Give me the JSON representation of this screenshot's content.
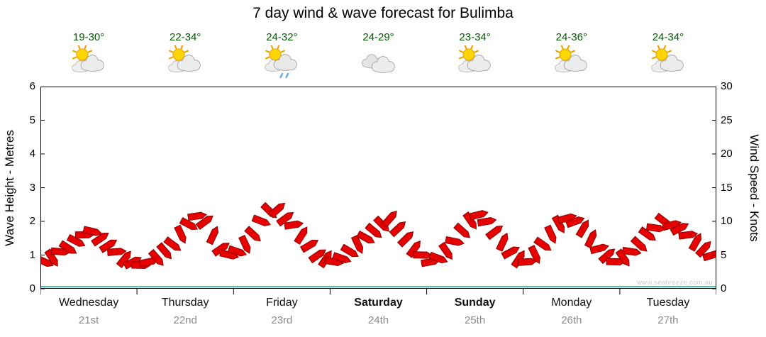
{
  "title": "7 day wind & wave forecast for Bulimba",
  "watermark": "www.seabreeze.com.au",
  "y_left": {
    "label": "Wave Height - Metres",
    "min": 0,
    "max": 6,
    "ticks": [
      0,
      1,
      2,
      3,
      4,
      5,
      6
    ]
  },
  "y_right": {
    "label": "Wind Speed - Knots",
    "min": 0,
    "max": 30,
    "ticks": [
      0,
      5,
      10,
      15,
      20,
      25,
      30
    ]
  },
  "days": [
    {
      "name": "Wednesday",
      "date": "21st",
      "temp": "19-30°",
      "icon": "sun-cloud",
      "weekend": false
    },
    {
      "name": "Thursday",
      "date": "22nd",
      "temp": "22-34°",
      "icon": "sun-cloud",
      "weekend": false
    },
    {
      "name": "Friday",
      "date": "23rd",
      "temp": "24-32°",
      "icon": "sun-cloud-rain",
      "weekend": false
    },
    {
      "name": "Saturday",
      "date": "24th",
      "temp": "24-29°",
      "icon": "cloud",
      "weekend": true
    },
    {
      "name": "Sunday",
      "date": "25th",
      "temp": "23-34°",
      "icon": "sun-cloud",
      "weekend": true
    },
    {
      "name": "Monday",
      "date": "26th",
      "temp": "24-36°",
      "icon": "sun-cloud",
      "weekend": false
    },
    {
      "name": "Tuesday",
      "date": "27th",
      "temp": "24-34°",
      "icon": "sun-cloud",
      "weekend": false
    }
  ],
  "chart_data": {
    "type": "wind-arrows",
    "unit": "knots",
    "categories": [
      "Wednesday 21st",
      "Thursday 22nd",
      "Friday 23rd",
      "Saturday 24th",
      "Sunday 25th",
      "Monday 26th",
      "Tuesday 27th"
    ],
    "points_per_day": 12,
    "y_right_range": [
      0,
      30
    ],
    "y_left_range": [
      0,
      6
    ],
    "legend": "none",
    "grid": "off",
    "arrow_color": "#E60000",
    "arrow_outline": "#8B0000",
    "zero_line_color": "#00AFAF",
    "series": [
      {
        "name": "Wind Speed (knots)",
        "values": [
          4.0,
          4.5,
          5.5,
          6.0,
          7.0,
          8.0,
          8.5,
          7.5,
          6.5,
          5.5,
          4.5,
          4.0,
          3.5,
          4.0,
          4.5,
          5.5,
          6.5,
          8.0,
          9.5,
          10.8,
          10.0,
          8.0,
          6.0,
          5.0,
          5.5,
          6.5,
          8.0,
          10.0,
          11.5,
          11.8,
          10.5,
          9.5,
          8.0,
          6.5,
          5.0,
          4.5,
          4.0,
          4.5,
          5.5,
          6.5,
          7.5,
          8.5,
          9.5,
          10.5,
          9.0,
          7.5,
          6.0,
          5.0,
          4.0,
          4.5,
          5.5,
          7.0,
          8.5,
          10.0,
          11.0,
          10.0,
          8.5,
          7.0,
          5.5,
          4.5,
          4.0,
          5.0,
          6.5,
          8.0,
          9.5,
          10.5,
          10.0,
          9.0,
          7.5,
          6.0,
          5.0,
          4.0,
          4.5,
          5.5,
          6.5,
          8.0,
          9.0,
          10.0,
          9.5,
          9.0,
          8.0,
          7.0,
          6.0,
          5.0
        ]
      }
    ]
  }
}
